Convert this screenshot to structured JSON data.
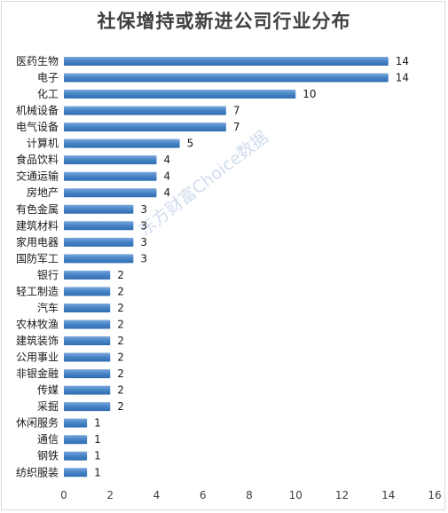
{
  "watermark": "东方财富Choice数据",
  "chart_data": {
    "type": "bar",
    "orientation": "horizontal",
    "title": "社保增持或新进公司行业分布",
    "categories": [
      "医药生物",
      "电子",
      "化工",
      "机械设备",
      "电气设备",
      "计算机",
      "食品饮料",
      "交通运输",
      "房地产",
      "有色金属",
      "建筑材料",
      "家用电器",
      "国防军工",
      "银行",
      "轻工制造",
      "汽车",
      "农林牧渔",
      "建筑装饰",
      "公用事业",
      "非银金融",
      "传媒",
      "采掘",
      "休闲服务",
      "通信",
      "钢铁",
      "纺织服装"
    ],
    "values": [
      14,
      14,
      10,
      7,
      7,
      5,
      4,
      4,
      4,
      3,
      3,
      3,
      3,
      2,
      2,
      2,
      2,
      2,
      2,
      2,
      2,
      2,
      1,
      1,
      1,
      1
    ],
    "xlim": [
      0,
      16
    ],
    "xticks": [
      0,
      2,
      4,
      6,
      8,
      10,
      12,
      14,
      16
    ],
    "bar_color": "#4a86c8",
    "data_labels": true,
    "grid": false
  }
}
